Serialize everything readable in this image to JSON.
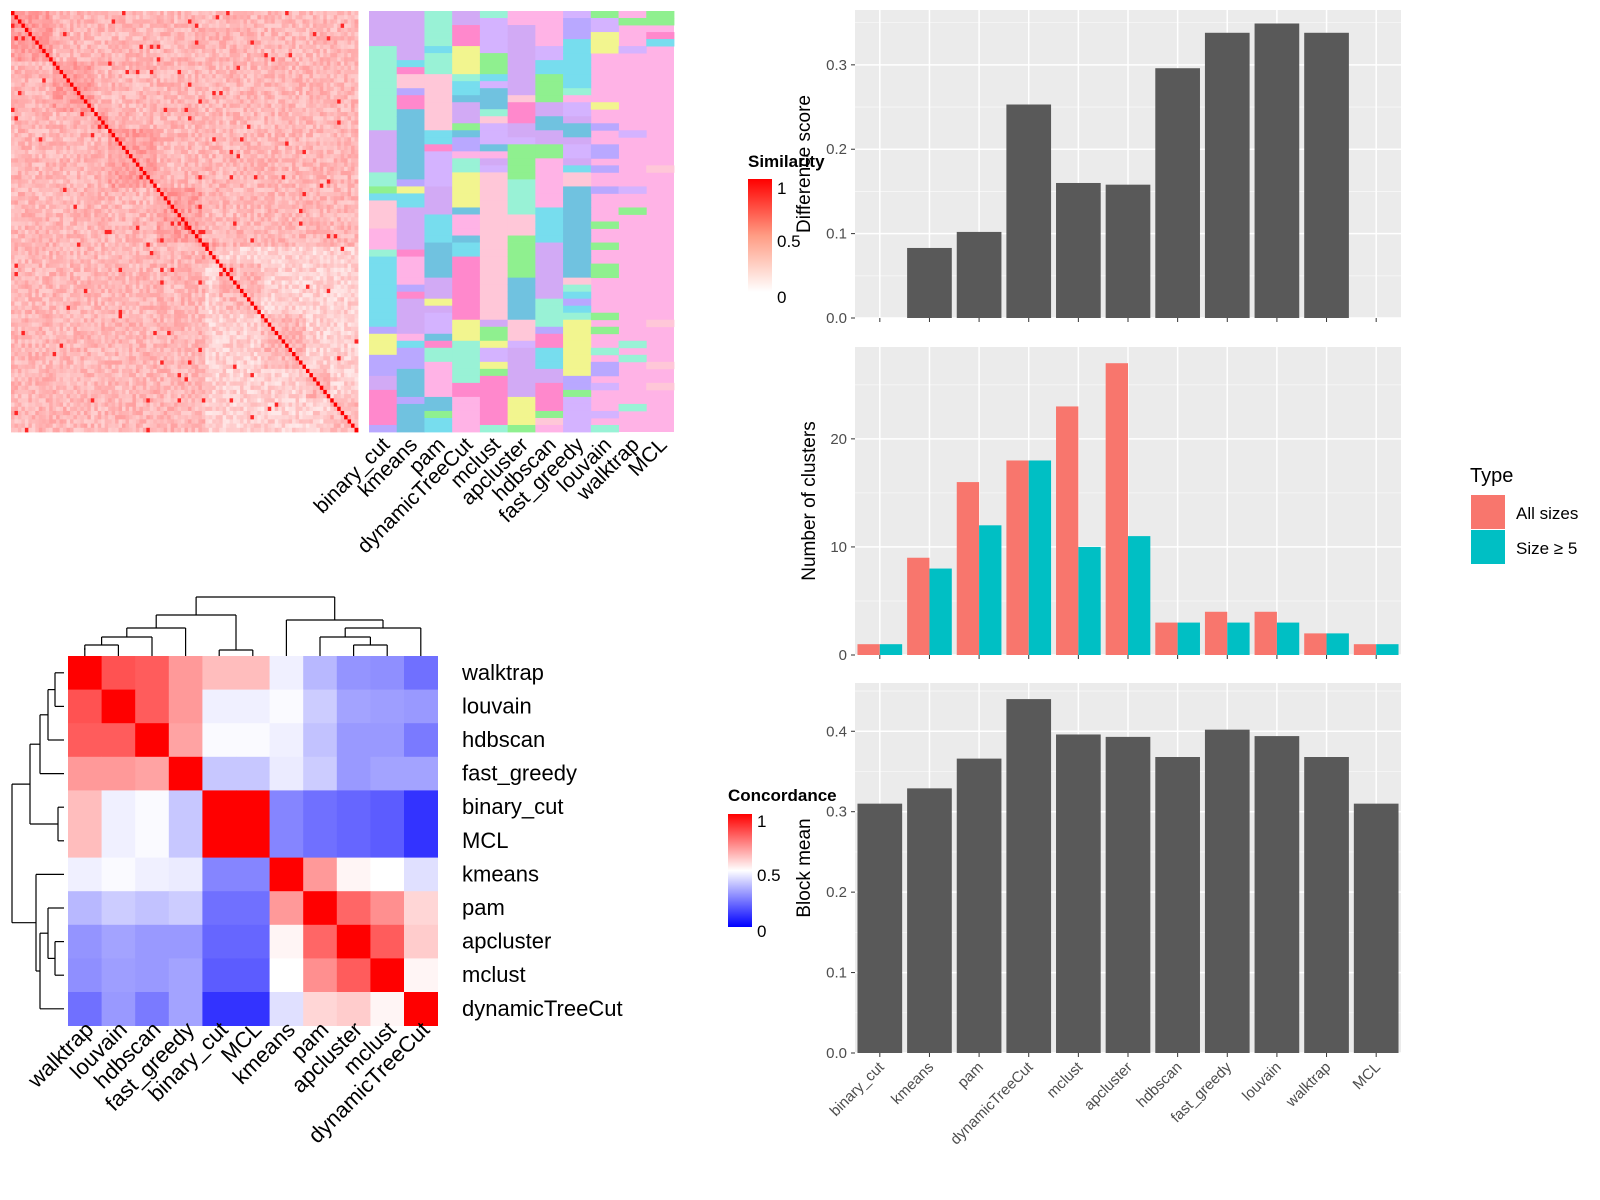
{
  "methods_col_order": [
    "binary_cut",
    "kmeans",
    "pam",
    "dynamicTreeCut",
    "mclust",
    "apcluster",
    "hdbscan",
    "fast_greedy",
    "louvain",
    "walktrap",
    "MCL"
  ],
  "similarity_legend": {
    "title": "Similarity",
    "ticks": [
      "1",
      "0.5",
      "0"
    ]
  },
  "concordance_legend": {
    "title": "Concordance",
    "ticks": [
      "1",
      "0.5",
      "0"
    ]
  },
  "concordance_order": [
    "walktrap",
    "louvain",
    "hdbscan",
    "fast_greedy",
    "binary_cut",
    "MCL",
    "kmeans",
    "pam",
    "apcluster",
    "mclust",
    "dynamicTreeCut"
  ],
  "concordance_matrix": [
    [
      1.0,
      0.84,
      0.82,
      0.7,
      0.63,
      0.63,
      0.47,
      0.36,
      0.29,
      0.28,
      0.22
    ],
    [
      0.84,
      1.0,
      0.82,
      0.7,
      0.47,
      0.47,
      0.49,
      0.4,
      0.32,
      0.31,
      0.3
    ],
    [
      0.82,
      0.82,
      1.0,
      0.68,
      0.49,
      0.49,
      0.47,
      0.38,
      0.3,
      0.3,
      0.24
    ],
    [
      0.7,
      0.7,
      0.68,
      1.0,
      0.39,
      0.39,
      0.46,
      0.4,
      0.3,
      0.32,
      0.32
    ],
    [
      0.63,
      0.47,
      0.49,
      0.39,
      1.0,
      1.0,
      0.26,
      0.22,
      0.2,
      0.18,
      0.1
    ],
    [
      0.63,
      0.47,
      0.49,
      0.39,
      1.0,
      1.0,
      0.26,
      0.22,
      0.2,
      0.18,
      0.1
    ],
    [
      0.47,
      0.49,
      0.47,
      0.46,
      0.26,
      0.26,
      1.0,
      0.7,
      0.52,
      0.5,
      0.44
    ],
    [
      0.36,
      0.4,
      0.38,
      0.4,
      0.22,
      0.22,
      0.7,
      1.0,
      0.8,
      0.72,
      0.58
    ],
    [
      0.29,
      0.32,
      0.3,
      0.3,
      0.2,
      0.2,
      0.52,
      0.8,
      1.0,
      0.82,
      0.6
    ],
    [
      0.28,
      0.31,
      0.3,
      0.32,
      0.18,
      0.18,
      0.5,
      0.72,
      0.82,
      1.0,
      0.52
    ],
    [
      0.22,
      0.3,
      0.24,
      0.32,
      0.1,
      0.1,
      0.44,
      0.58,
      0.6,
      0.52,
      1.0
    ]
  ],
  "chart_data": [
    {
      "type": "bar",
      "categories": [
        "binary_cut",
        "kmeans",
        "pam",
        "dynamicTreeCut",
        "mclust",
        "apcluster",
        "hdbscan",
        "fast_greedy",
        "louvain",
        "walktrap",
        "MCL"
      ],
      "values": [
        0,
        0.083,
        0.102,
        0.253,
        0.16,
        0.158,
        0.296,
        0.338,
        0.349,
        0.338,
        0
      ],
      "ylabel": "Difference score",
      "ylim": [
        0,
        0.365
      ],
      "yticks": [
        "0.0",
        "0.1",
        "0.2",
        "0.3"
      ],
      "ytick_values": [
        0,
        0.1,
        0.2,
        0.3
      ],
      "bar_color": "#595959"
    },
    {
      "type": "bar",
      "categories": [
        "binary_cut",
        "kmeans",
        "pam",
        "dynamicTreeCut",
        "mclust",
        "apcluster",
        "hdbscan",
        "fast_greedy",
        "louvain",
        "walktrap",
        "MCL"
      ],
      "series": [
        {
          "name": "All sizes",
          "color": "#F8766D",
          "values": [
            1,
            9,
            16,
            18,
            23,
            27,
            3,
            4,
            4,
            2,
            1
          ]
        },
        {
          "name": "Size ≥ 5",
          "color": "#00BFC4",
          "values": [
            1,
            8,
            12,
            18,
            10,
            11,
            3,
            3,
            3,
            2,
            1
          ]
        }
      ],
      "ylabel": "Number of clusters",
      "ylim": [
        0,
        28.5
      ],
      "yticks": [
        "0",
        "10",
        "20"
      ],
      "ytick_values": [
        0,
        10,
        20
      ],
      "legend_title": "Type",
      "legend_position": "right"
    },
    {
      "type": "bar",
      "categories": [
        "binary_cut",
        "kmeans",
        "pam",
        "dynamicTreeCut",
        "mclust",
        "apcluster",
        "hdbscan",
        "fast_greedy",
        "louvain",
        "walktrap",
        "MCL"
      ],
      "values": [
        0.31,
        0.329,
        0.366,
        0.44,
        0.396,
        0.393,
        0.368,
        0.402,
        0.394,
        0.368,
        0.31
      ],
      "ylabel": "Block mean",
      "ylim": [
        0,
        0.46
      ],
      "yticks": [
        "0.0",
        "0.1",
        "0.2",
        "0.3",
        "0.4"
      ],
      "ytick_values": [
        0,
        0.1,
        0.2,
        0.3,
        0.4
      ],
      "bar_color": "#595959"
    }
  ],
  "colors": {
    "panel_bg": "#EBEBEB",
    "grid": "#FFFFFF",
    "sim_high": "#FF0000",
    "conc_low": "#0000FF",
    "pink_bg": "#FFB3E6",
    "legend_all_sizes": "#F8766D",
    "legend_size5": "#00BFC4"
  }
}
